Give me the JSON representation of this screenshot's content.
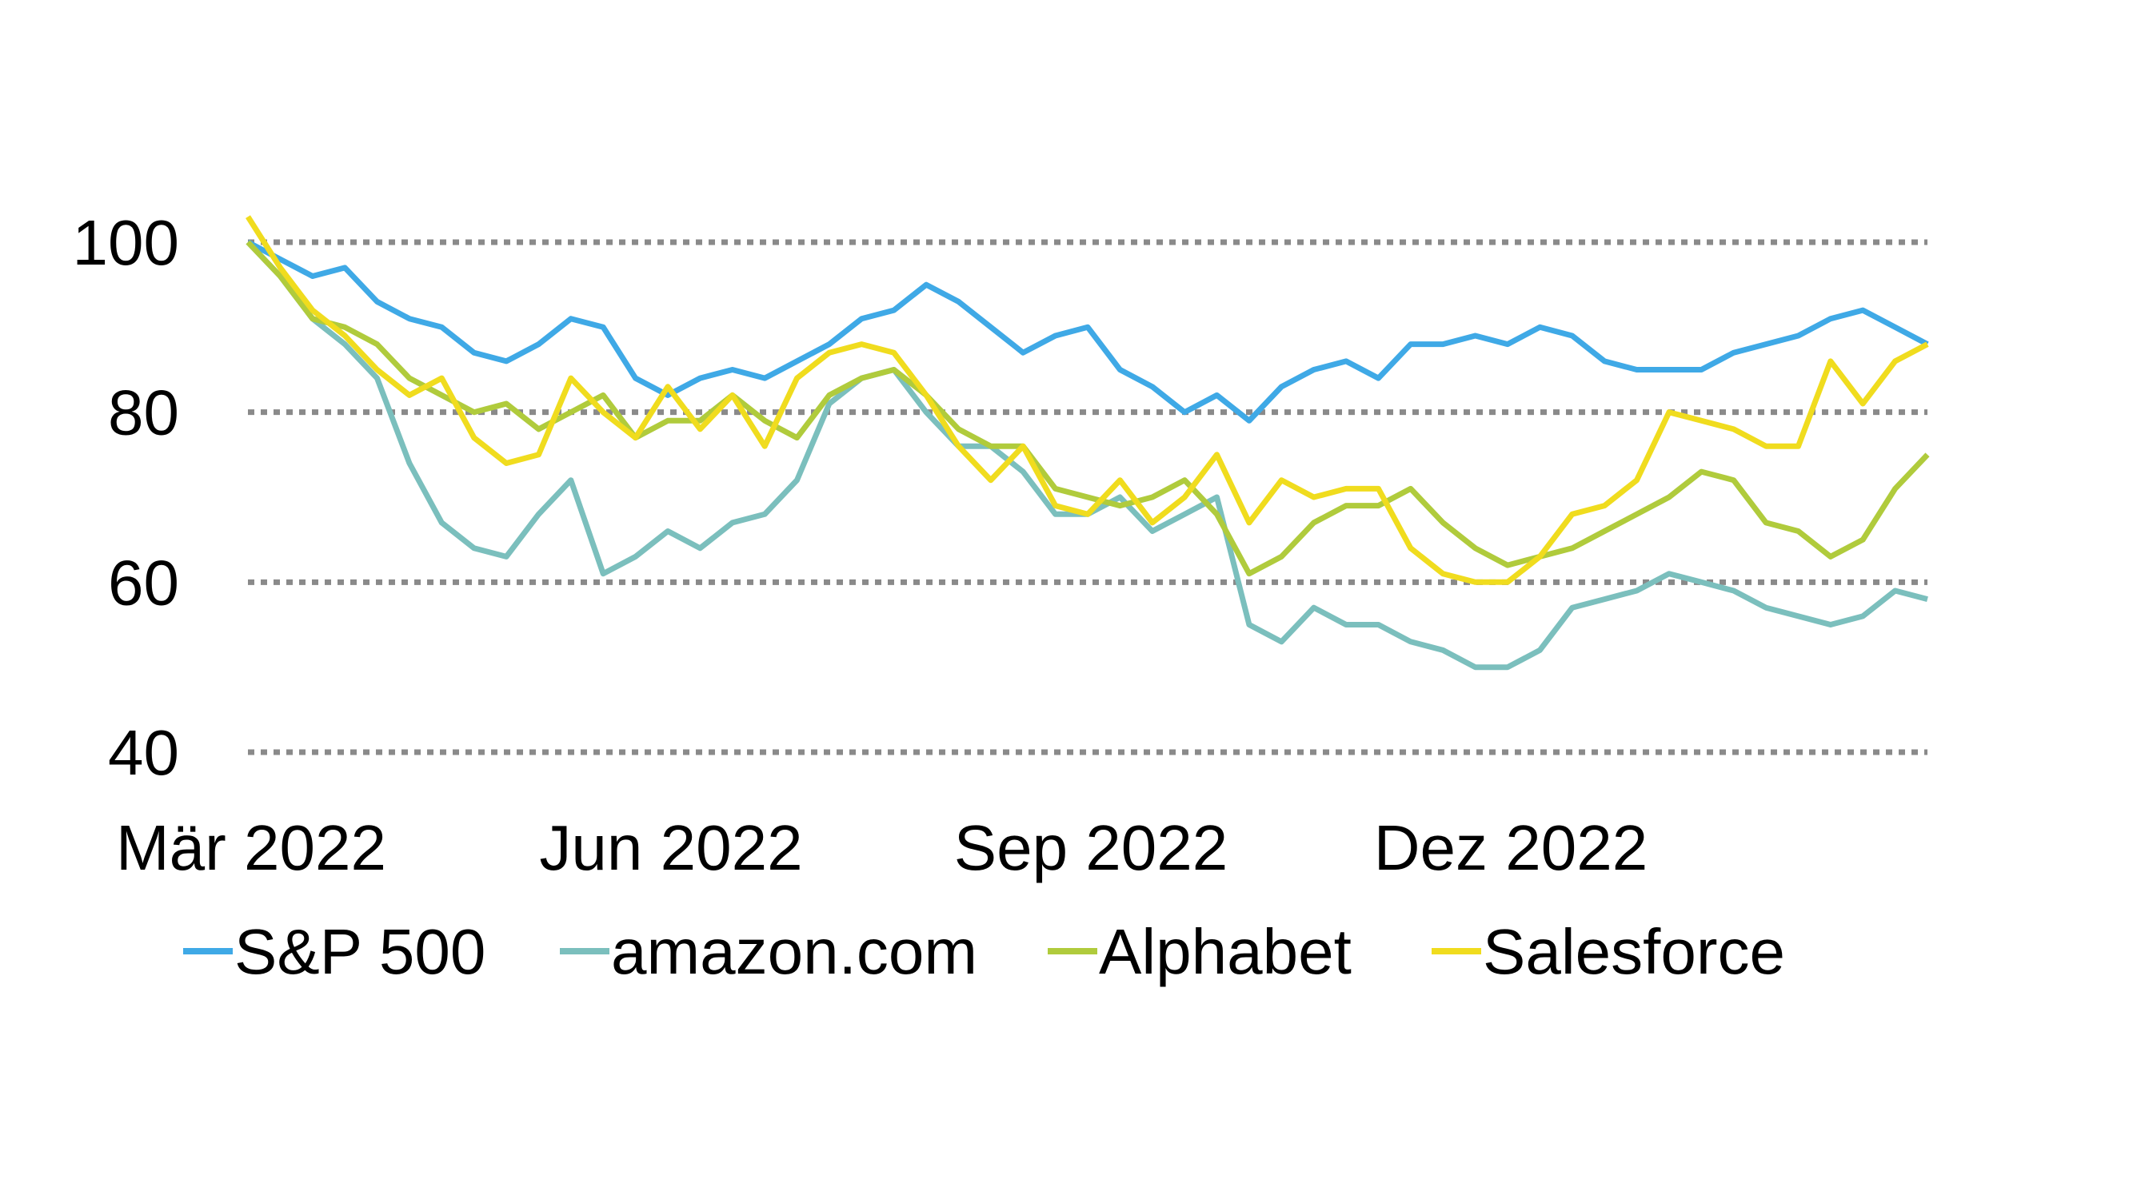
{
  "chart_data": {
    "type": "line",
    "title": "",
    "xlabel": "",
    "ylabel": "",
    "x_unit": "weeks since Mar 2022",
    "x": [
      0,
      1,
      2,
      3,
      4,
      5,
      6,
      7,
      8,
      9,
      10,
      11,
      12,
      13,
      14,
      15,
      16,
      17,
      18,
      19,
      20,
      21,
      22,
      23,
      24,
      25,
      26,
      27,
      28,
      29,
      30,
      31,
      32,
      33,
      34,
      35,
      36,
      37,
      38,
      39,
      40,
      41,
      42,
      43,
      44,
      45,
      46,
      47,
      48,
      49,
      50,
      51,
      52
    ],
    "xlim": [
      0,
      52
    ],
    "ylim": [
      40,
      100
    ],
    "yticks": [
      {
        "value": 100,
        "label": "100"
      },
      {
        "value": 80,
        "label": "80"
      },
      {
        "value": 60,
        "label": "60"
      },
      {
        "value": 40,
        "label": "40"
      }
    ],
    "xticks": [
      {
        "value": 0,
        "label": "Mär 2022"
      },
      {
        "value": 13,
        "label": "Jun 2022"
      },
      {
        "value": 26,
        "label": "Sep 2022"
      },
      {
        "value": 39,
        "label": "Dez 2022"
      }
    ],
    "grid": "horizontal-dotted",
    "legend_position": "bottom",
    "series": [
      {
        "name": "S&P 500",
        "color": "#3fa9e6",
        "values": [
          100,
          98,
          96,
          97,
          93,
          91,
          90,
          87,
          86,
          88,
          91,
          90,
          84,
          82,
          84,
          85,
          84,
          86,
          88,
          91,
          92,
          95,
          93,
          90,
          87,
          89,
          90,
          85,
          83,
          80,
          82,
          79,
          83,
          85,
          86,
          84,
          88,
          88,
          89,
          88,
          90,
          89,
          86,
          85,
          85,
          85,
          87,
          88,
          89,
          91,
          92,
          90,
          88
        ]
      },
      {
        "name": "amazon.com",
        "color": "#7bbfbd",
        "values": [
          100,
          96,
          91,
          88,
          84,
          74,
          67,
          64,
          63,
          68,
          72,
          61,
          63,
          66,
          64,
          67,
          68,
          72,
          81,
          84,
          85,
          80,
          76,
          76,
          73,
          68,
          68,
          70,
          66,
          68,
          70,
          55,
          53,
          57,
          55,
          55,
          53,
          52,
          50,
          50,
          52,
          57,
          58,
          59,
          61,
          60,
          59,
          57,
          56,
          55,
          56,
          59,
          58
        ]
      },
      {
        "name": "Alphabet",
        "color": "#b0cb3c",
        "values": [
          100,
          96,
          91,
          90,
          88,
          84,
          82,
          80,
          81,
          78,
          80,
          82,
          77,
          79,
          79,
          82,
          79,
          77,
          82,
          84,
          85,
          82,
          78,
          76,
          76,
          71,
          70,
          69,
          70,
          72,
          68,
          61,
          63,
          67,
          69,
          69,
          71,
          67,
          64,
          62,
          63,
          64,
          66,
          68,
          70,
          73,
          72,
          67,
          66,
          63,
          65,
          71,
          75
        ]
      },
      {
        "name": "Salesforce",
        "color": "#f0dc1e",
        "values": [
          103,
          97,
          92,
          89,
          85,
          82,
          84,
          77,
          74,
          75,
          84,
          80,
          77,
          83,
          78,
          82,
          76,
          84,
          87,
          88,
          87,
          82,
          76,
          72,
          76,
          69,
          68,
          72,
          67,
          70,
          75,
          67,
          72,
          70,
          71,
          71,
          64,
          61,
          60,
          60,
          63,
          68,
          69,
          72,
          80,
          79,
          78,
          76,
          76,
          86,
          81,
          86,
          88
        ]
      }
    ]
  }
}
